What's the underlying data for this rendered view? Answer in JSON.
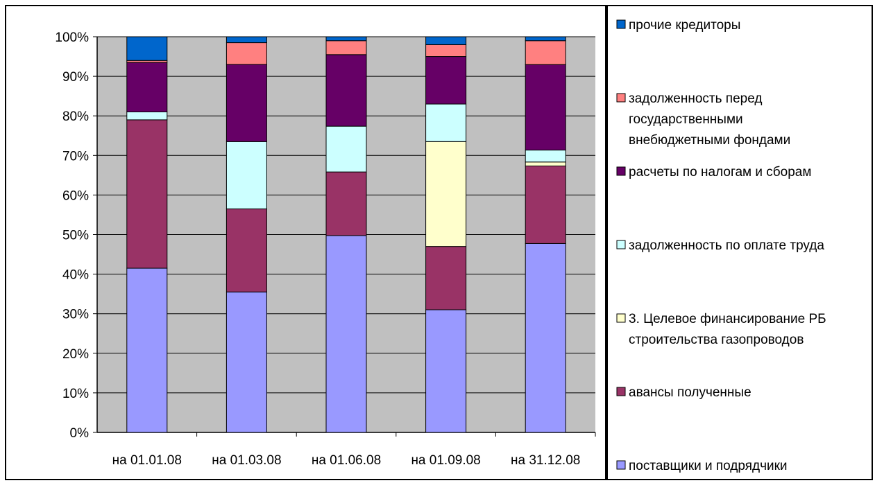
{
  "chart_data": {
    "type": "bar",
    "stacked": true,
    "percent_stacked": true,
    "categories": [
      "на 01.01.08",
      "на 01.03.08",
      "на 01.06.08",
      "на 01.09.08",
      "на 31.12.08"
    ],
    "y_ticks": [
      "0%",
      "10%",
      "20%",
      "30%",
      "40%",
      "50%",
      "60%",
      "70%",
      "80%",
      "90%",
      "100%"
    ],
    "ylim": [
      0,
      100
    ],
    "grid": true,
    "plot_background": "#c0c0c0",
    "legend_position": "right",
    "series": [
      {
        "name": "поставщики и подрядчики",
        "color": "#9999ff",
        "values": [
          41.5,
          35.5,
          49.5,
          31,
          47.5
        ]
      },
      {
        "name": "авансы полученные",
        "color": "#993366",
        "values": [
          37.5,
          21,
          16,
          16,
          19.5
        ]
      },
      {
        "name": "3. Целевое финансирование РБ строительства газопроводов",
        "color": "#ffffcc",
        "values": [
          0,
          0,
          0,
          26.5,
          1
        ]
      },
      {
        "name": "задолженность по оплате труда",
        "color": "#ccffff",
        "values": [
          2,
          17,
          11.5,
          9.5,
          3
        ]
      },
      {
        "name": "расчеты по налогам и сборам",
        "color": "#660066",
        "values": [
          12.5,
          19.5,
          18,
          12,
          21.5
        ]
      },
      {
        "name": "задолженность перед государственными внебюджетными фондами",
        "color": "#ff8080",
        "values": [
          0.5,
          5.5,
          3.5,
          3,
          6
        ]
      },
      {
        "name": "прочие кредиторы",
        "color": "#0066cc",
        "values": [
          6,
          1.5,
          1,
          2,
          1
        ]
      }
    ],
    "legend_lines": [
      [
        "прочие кредиторы"
      ],
      [
        "задолженность перед",
        "государственными",
        "внебюджетными фондами"
      ],
      [
        "расчеты по налогам и сборам"
      ],
      [
        "задолженность по оплате труда"
      ],
      [
        "3. Целевое финансирование РБ",
        "строительства газопроводов"
      ],
      [
        "авансы полученные"
      ],
      [
        "поставщики и подрядчики"
      ]
    ]
  }
}
